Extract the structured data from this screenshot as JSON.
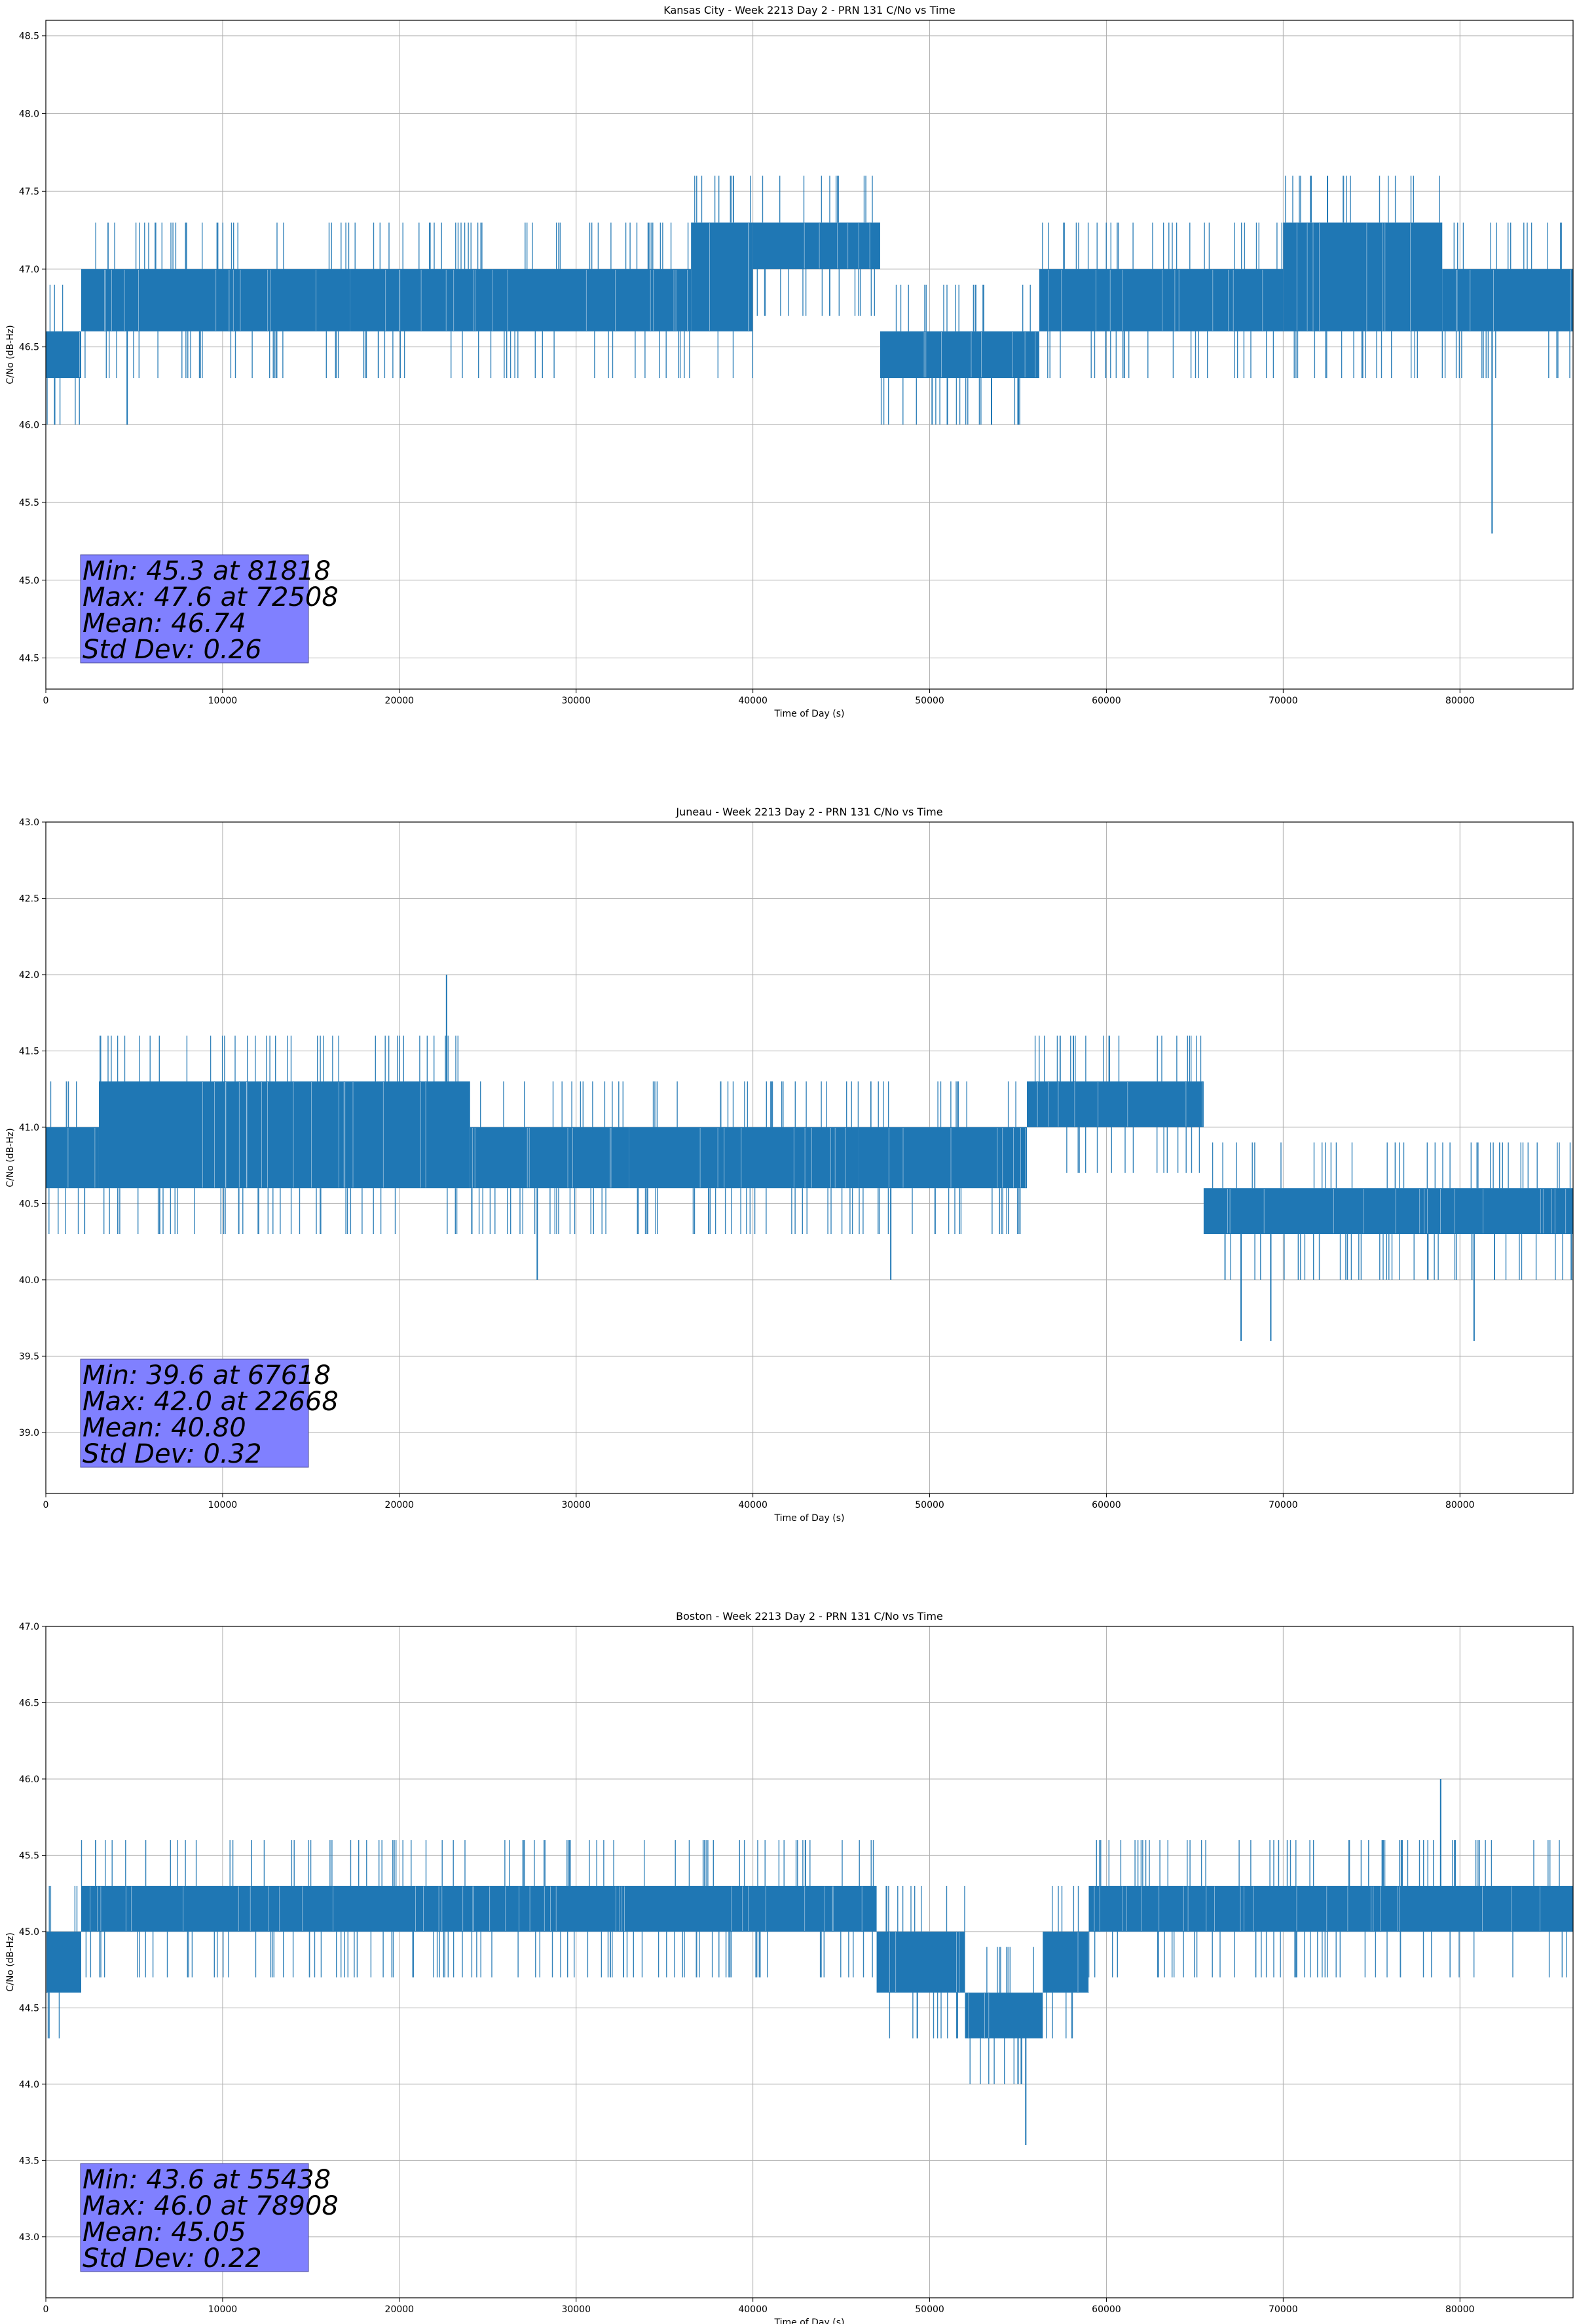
{
  "chart_data": [
    {
      "type": "line",
      "title": "Kansas City - Week 2213 Day 2 - PRN 131 C/No vs Time",
      "xlabel": "Time of Day (s)",
      "ylabel": "C/No (dB-Hz)",
      "xlim": [
        0,
        86400
      ],
      "ylim": [
        44.3,
        48.6
      ],
      "xticks": [
        0,
        10000,
        20000,
        30000,
        40000,
        50000,
        60000,
        70000,
        80000
      ],
      "yticks": [
        "44.5",
        "45.0",
        "45.5",
        "46.0",
        "46.5",
        "47.0",
        "47.5",
        "48.0",
        "48.5"
      ],
      "grid": true,
      "color": "#1f77b4",
      "series": [
        {
          "segments": [
            {
              "x0": 0,
              "x1": 2000,
              "lo": 46.3,
              "hi": 46.6
            },
            {
              "x0": 2000,
              "x1": 17200,
              "lo": 46.6,
              "hi": 47.0
            },
            {
              "x0": 17200,
              "x1": 36500,
              "lo": 46.6,
              "hi": 47.0
            },
            {
              "x0": 36500,
              "x1": 40000,
              "lo": 46.6,
              "hi": 47.3
            },
            {
              "x0": 40000,
              "x1": 47200,
              "lo": 47.0,
              "hi": 47.3
            },
            {
              "x0": 47200,
              "x1": 56200,
              "lo": 46.3,
              "hi": 46.6
            },
            {
              "x0": 56200,
              "x1": 70000,
              "lo": 46.6,
              "hi": 47.0
            },
            {
              "x0": 70000,
              "x1": 79000,
              "lo": 46.6,
              "hi": 47.3
            },
            {
              "x0": 79000,
              "x1": 86400,
              "lo": 46.6,
              "hi": 47.0
            }
          ],
          "spikes": [
            {
              "x": 500,
              "y": 46.0
            },
            {
              "x": 4600,
              "y": 46.0
            },
            {
              "x": 51000,
              "y": 46.0
            },
            {
              "x": 53500,
              "y": 46.0
            },
            {
              "x": 55000,
              "y": 46.0
            },
            {
              "x": 72508,
              "y": 47.6
            },
            {
              "x": 81818,
              "y": 45.3
            }
          ]
        }
      ],
      "stats": [
        "Min: 45.3 at 81818",
        "Max: 47.6 at 72508",
        "Mean: 46.74",
        "Std Dev: 0.26"
      ]
    },
    {
      "type": "line",
      "title": "Juneau - Week 2213 Day 2 - PRN 131 C/No vs Time",
      "xlabel": "Time of Day (s)",
      "ylabel": "C/No (dB-Hz)",
      "xlim": [
        0,
        86400
      ],
      "ylim": [
        38.6,
        43.0
      ],
      "xticks": [
        0,
        10000,
        20000,
        30000,
        40000,
        50000,
        60000,
        70000,
        80000
      ],
      "yticks": [
        "39.0",
        "39.5",
        "40.0",
        "40.5",
        "41.0",
        "41.5",
        "42.0",
        "42.5",
        "43.0"
      ],
      "grid": true,
      "color": "#1f77b4",
      "series": [
        {
          "segments": [
            {
              "x0": 0,
              "x1": 3000,
              "lo": 40.6,
              "hi": 41.0
            },
            {
              "x0": 3000,
              "x1": 24000,
              "lo": 40.6,
              "hi": 41.3
            },
            {
              "x0": 24000,
              "x1": 33000,
              "lo": 40.6,
              "hi": 41.0
            },
            {
              "x0": 33000,
              "x1": 46000,
              "lo": 40.6,
              "hi": 41.0
            },
            {
              "x0": 46000,
              "x1": 55500,
              "lo": 40.6,
              "hi": 41.0
            },
            {
              "x0": 55500,
              "x1": 65500,
              "lo": 41.0,
              "hi": 41.3
            },
            {
              "x0": 65500,
              "x1": 86400,
              "lo": 40.3,
              "hi": 40.6
            }
          ],
          "spikes": [
            {
              "x": 27800,
              "y": 40.0
            },
            {
              "x": 37500,
              "y": 40.3
            },
            {
              "x": 47800,
              "y": 40.0
            },
            {
              "x": 22668,
              "y": 42.0
            },
            {
              "x": 67618,
              "y": 39.6
            },
            {
              "x": 69300,
              "y": 39.6
            },
            {
              "x": 80800,
              "y": 39.6
            }
          ]
        }
      ],
      "stats": [
        "Min: 39.6 at 67618",
        "Max: 42.0 at 22668",
        "Mean: 40.80",
        "Std Dev: 0.32"
      ]
    },
    {
      "type": "line",
      "title": "Boston - Week 2213 Day 2 - PRN 131 C/No vs Time",
      "xlabel": "Time of Day (s)",
      "ylabel": "C/No (dB-Hz)",
      "xlim": [
        0,
        86400
      ],
      "ylim": [
        42.6,
        47.0
      ],
      "xticks": [
        0,
        10000,
        20000,
        30000,
        40000,
        50000,
        60000,
        70000,
        80000
      ],
      "yticks": [
        "43.0",
        "43.5",
        "44.0",
        "44.5",
        "45.0",
        "45.5",
        "46.0",
        "46.5",
        "47.0"
      ],
      "grid": true,
      "color": "#1f77b4",
      "series": [
        {
          "segments": [
            {
              "x0": 0,
              "x1": 2000,
              "lo": 44.6,
              "hi": 45.0
            },
            {
              "x0": 2000,
              "x1": 47000,
              "lo": 45.0,
              "hi": 45.3
            },
            {
              "x0": 47000,
              "x1": 52000,
              "lo": 44.6,
              "hi": 45.0
            },
            {
              "x0": 52000,
              "x1": 56400,
              "lo": 44.3,
              "hi": 44.6
            },
            {
              "x0": 56400,
              "x1": 59000,
              "lo": 44.6,
              "hi": 45.0
            },
            {
              "x0": 59000,
              "x1": 86400,
              "lo": 45.0,
              "hi": 45.3
            }
          ],
          "spikes": [
            {
              "x": 27000,
              "y": 45.6
            },
            {
              "x": 49300,
              "y": 44.3
            },
            {
              "x": 55438,
              "y": 43.6
            },
            {
              "x": 55000,
              "y": 44.0
            },
            {
              "x": 78908,
              "y": 46.0
            }
          ]
        }
      ],
      "stats": [
        "Min: 43.6 at 55438",
        "Max: 46.0 at 78908",
        "Mean: 45.05",
        "Std Dev: 0.22"
      ]
    }
  ]
}
